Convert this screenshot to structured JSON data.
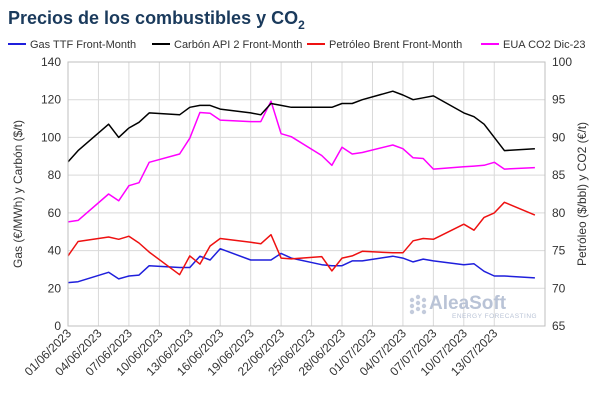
{
  "chart_data": {
    "type": "line",
    "title": "Precios de los combustibles y CO",
    "title_subscript": "2",
    "ylabel_left": "Gas (€/MWh) y Carbón ($/t)",
    "ylabel_right": "Petróleo ($/bbl) y CO2 (€/t)",
    "ylim_left": [
      0,
      140
    ],
    "yticks_left": [
      "0",
      "20",
      "40",
      "60",
      "80",
      "100",
      "120",
      "140"
    ],
    "ylim_right": [
      65,
      100
    ],
    "yticks_right": [
      "65",
      "70",
      "75",
      "80",
      "85",
      "90",
      "95",
      "100"
    ],
    "x_ticks": [
      "01/06/2023",
      "04/06/2023",
      "07/06/2023",
      "10/06/2023",
      "13/06/2023",
      "16/06/2023",
      "19/06/2023",
      "22/06/2023",
      "25/06/2023",
      "28/06/2023",
      "01/07/2023",
      "04/07/2023",
      "07/07/2023",
      "10/07/2023",
      "13/07/2023"
    ],
    "grid": true,
    "legend_position": "top",
    "series": [
      {
        "name": "Gas TTF Front-Month",
        "axis": "left",
        "color": "#1f1fdc",
        "points": [
          [
            "01/06/2023",
            23.0
          ],
          [
            "02/06/2023",
            23.5
          ],
          [
            "05/06/2023",
            28.5
          ],
          [
            "06/06/2023",
            25.0
          ],
          [
            "07/06/2023",
            26.5
          ],
          [
            "08/06/2023",
            27.0
          ],
          [
            "09/06/2023",
            32.0
          ],
          [
            "12/06/2023",
            31.0
          ],
          [
            "13/06/2023",
            31.0
          ],
          [
            "14/06/2023",
            37.0
          ],
          [
            "15/06/2023",
            35.0
          ],
          [
            "16/06/2023",
            41.0
          ],
          [
            "19/06/2023",
            35.0
          ],
          [
            "20/06/2023",
            35.0
          ],
          [
            "21/06/2023",
            35.0
          ],
          [
            "22/06/2023",
            38.5
          ],
          [
            "23/06/2023",
            36.0
          ],
          [
            "26/06/2023",
            32.5
          ],
          [
            "27/06/2023",
            32.0
          ],
          [
            "28/06/2023",
            32.0
          ],
          [
            "29/06/2023",
            34.5
          ],
          [
            "30/06/2023",
            34.5
          ],
          [
            "03/07/2023",
            37.0
          ],
          [
            "04/07/2023",
            36.0
          ],
          [
            "05/07/2023",
            34.0
          ],
          [
            "06/07/2023",
            35.5
          ],
          [
            "07/07/2023",
            34.5
          ],
          [
            "10/07/2023",
            32.5
          ],
          [
            "11/07/2023",
            33.0
          ],
          [
            "12/07/2023",
            29.0
          ],
          [
            "13/07/2023",
            26.5
          ],
          [
            "14/07/2023",
            26.5
          ],
          [
            "17/07/2023",
            25.5
          ]
        ]
      },
      {
        "name": "Carbón API 2 Front-Month",
        "axis": "left",
        "color": "#000000",
        "points": [
          [
            "01/06/2023",
            87.0
          ],
          [
            "02/06/2023",
            93.0
          ],
          [
            "05/06/2023",
            107.0
          ],
          [
            "06/06/2023",
            100.0
          ],
          [
            "07/06/2023",
            105.0
          ],
          [
            "08/06/2023",
            108.0
          ],
          [
            "09/06/2023",
            113.0
          ],
          [
            "12/06/2023",
            112.0
          ],
          [
            "13/06/2023",
            116.0
          ],
          [
            "14/06/2023",
            117.0
          ],
          [
            "15/06/2023",
            117.0
          ],
          [
            "16/06/2023",
            115.0
          ],
          [
            "19/06/2023",
            113.0
          ],
          [
            "20/06/2023",
            112.0
          ],
          [
            "21/06/2023",
            118.0
          ],
          [
            "22/06/2023",
            117.0
          ],
          [
            "23/06/2023",
            116.0
          ],
          [
            "26/06/2023",
            116.0
          ],
          [
            "27/06/2023",
            116.0
          ],
          [
            "28/06/2023",
            118.0
          ],
          [
            "29/06/2023",
            118.0
          ],
          [
            "30/06/2023",
            120.0
          ],
          [
            "03/07/2023",
            124.5
          ],
          [
            "04/07/2023",
            122.5
          ],
          [
            "05/07/2023",
            120.0
          ],
          [
            "06/07/2023",
            121.0
          ],
          [
            "07/07/2023",
            122.0
          ],
          [
            "10/07/2023",
            113.0
          ],
          [
            "11/07/2023",
            111.0
          ],
          [
            "12/07/2023",
            107.0
          ],
          [
            "13/07/2023",
            100.0
          ],
          [
            "14/07/2023",
            93.0
          ],
          [
            "17/07/2023",
            94.0
          ]
        ]
      },
      {
        "name": "Petróleo Brent Front-Month",
        "axis": "right",
        "color": "#ee1111",
        "points": [
          [
            "01/06/2023",
            74.3
          ],
          [
            "02/06/2023",
            76.2
          ],
          [
            "05/06/2023",
            76.8
          ],
          [
            "06/06/2023",
            76.5
          ],
          [
            "07/06/2023",
            76.9
          ],
          [
            "08/06/2023",
            76.0
          ],
          [
            "09/06/2023",
            74.8
          ],
          [
            "12/06/2023",
            71.8
          ],
          [
            "13/06/2023",
            74.3
          ],
          [
            "14/06/2023",
            73.2
          ],
          [
            "15/06/2023",
            75.6
          ],
          [
            "16/06/2023",
            76.6
          ],
          [
            "19/06/2023",
            76.1
          ],
          [
            "20/06/2023",
            75.9
          ],
          [
            "21/06/2023",
            77.1
          ],
          [
            "22/06/2023",
            74.0
          ],
          [
            "23/06/2023",
            73.9
          ],
          [
            "26/06/2023",
            74.2
          ],
          [
            "27/06/2023",
            72.3
          ],
          [
            "28/06/2023",
            74.0
          ],
          [
            "29/06/2023",
            74.3
          ],
          [
            "30/06/2023",
            74.9
          ],
          [
            "03/07/2023",
            74.7
          ],
          [
            "04/07/2023",
            74.7
          ],
          [
            "05/07/2023",
            76.3
          ],
          [
            "06/07/2023",
            76.6
          ],
          [
            "07/07/2023",
            76.5
          ],
          [
            "10/07/2023",
            78.5
          ],
          [
            "11/07/2023",
            77.7
          ],
          [
            "12/07/2023",
            79.4
          ],
          [
            "13/07/2023",
            80.0
          ],
          [
            "14/07/2023",
            81.4
          ],
          [
            "17/07/2023",
            79.7
          ]
        ]
      },
      {
        "name": "EUA CO2 Dic-23",
        "axis": "right",
        "color": "#ff00ff",
        "points": [
          [
            "01/06/2023",
            78.8
          ],
          [
            "02/06/2023",
            79.0
          ],
          [
            "05/06/2023",
            82.5
          ],
          [
            "06/06/2023",
            81.6
          ],
          [
            "07/06/2023",
            83.6
          ],
          [
            "08/06/2023",
            84.0
          ],
          [
            "09/06/2023",
            86.7
          ],
          [
            "12/06/2023",
            87.8
          ],
          [
            "13/06/2023",
            89.9
          ],
          [
            "14/06/2023",
            93.3
          ],
          [
            "15/06/2023",
            93.2
          ],
          [
            "16/06/2023",
            92.3
          ],
          [
            "19/06/2023",
            92.1
          ],
          [
            "20/06/2023",
            92.1
          ],
          [
            "21/06/2023",
            94.8
          ],
          [
            "22/06/2023",
            90.5
          ],
          [
            "23/06/2023",
            90.1
          ],
          [
            "26/06/2023",
            87.6
          ],
          [
            "27/06/2023",
            86.3
          ],
          [
            "28/06/2023",
            88.7
          ],
          [
            "29/06/2023",
            87.8
          ],
          [
            "30/06/2023",
            88.0
          ],
          [
            "03/07/2023",
            89.0
          ],
          [
            "04/07/2023",
            88.5
          ],
          [
            "05/07/2023",
            87.3
          ],
          [
            "06/07/2023",
            87.2
          ],
          [
            "07/07/2023",
            85.8
          ],
          [
            "10/07/2023",
            86.1
          ],
          [
            "11/07/2023",
            86.2
          ],
          [
            "12/07/2023",
            86.3
          ],
          [
            "13/07/2023",
            86.7
          ],
          [
            "14/07/2023",
            85.8
          ],
          [
            "17/07/2023",
            86.0
          ]
        ]
      }
    ]
  },
  "logo": {
    "name": "AleaSoft",
    "tagline": "ENERGY FORECASTING"
  }
}
